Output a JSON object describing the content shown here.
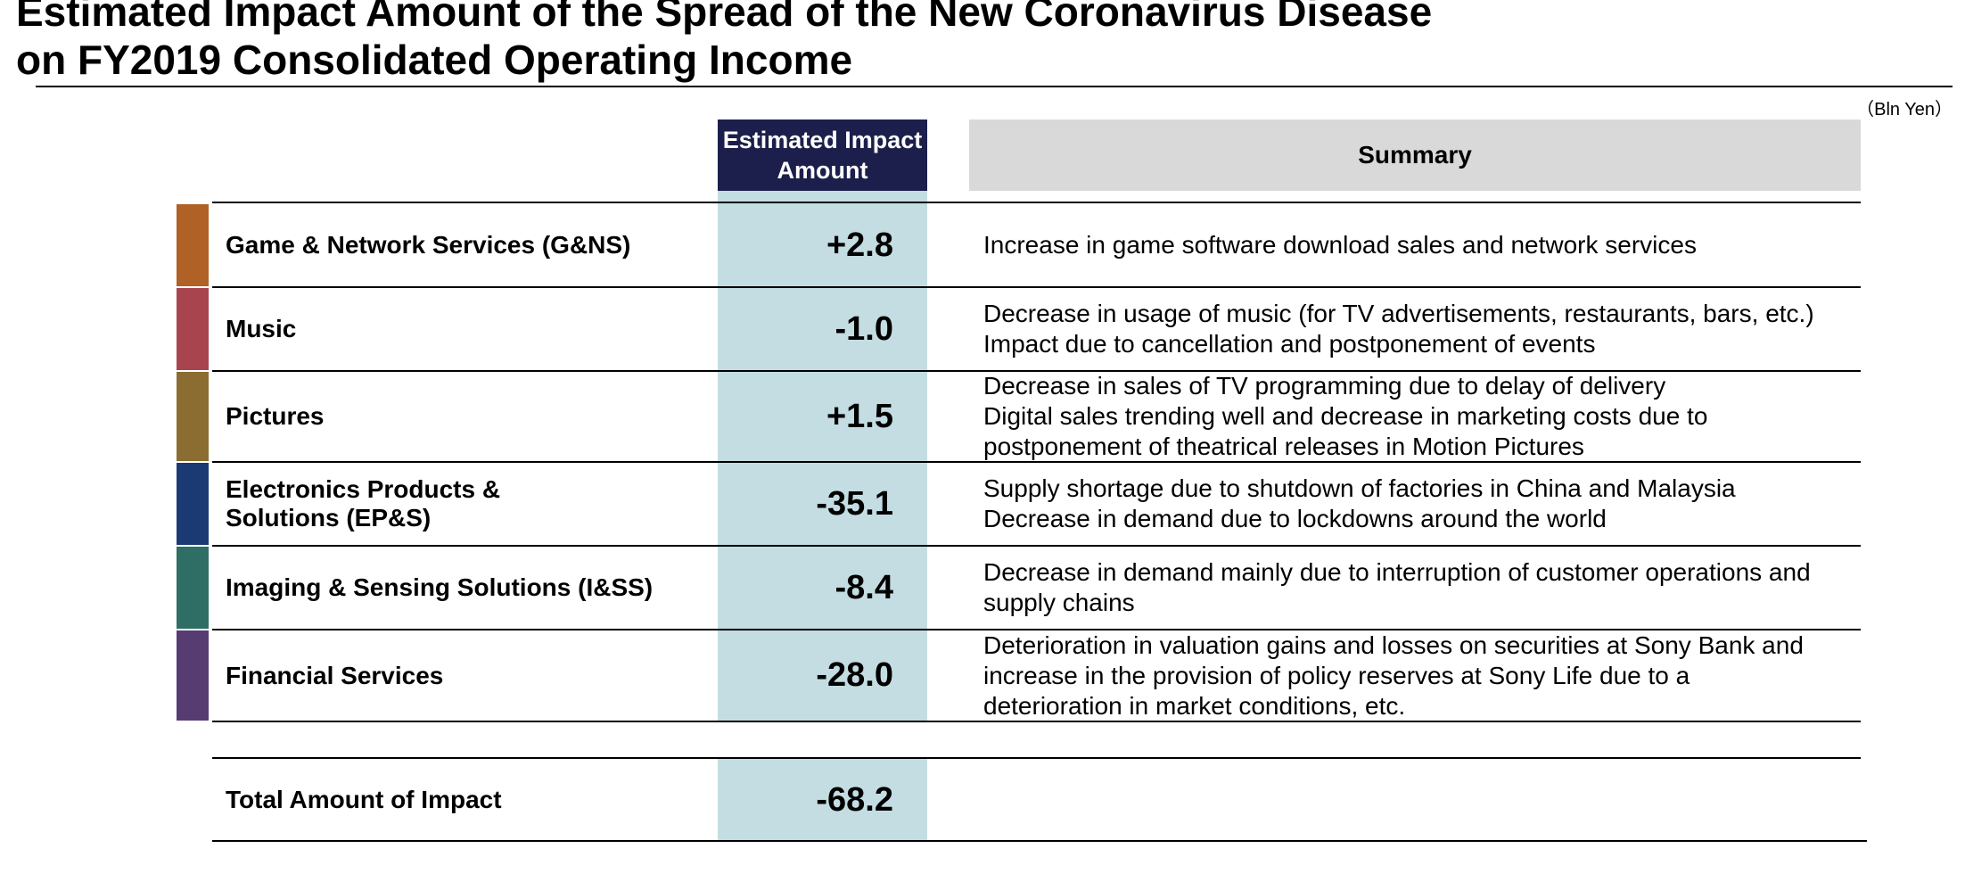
{
  "title": {
    "line1": "Estimated Impact Amount of the Spread of the New Coronavirus Disease",
    "line2": "on FY2019 Consolidated Operating Income"
  },
  "unit": "（Bln Yen）",
  "headers": {
    "impact_line1": "Estimated Impact",
    "impact_line2": "Amount",
    "summary": "Summary"
  },
  "colors": {
    "impact_header_bg": "#1c1f4b",
    "impact_column_bg": "#c3dde2",
    "summary_header_bg": "#d9d9d9"
  },
  "rows": [
    {
      "segment_lines": [
        "Game & Network Services (G&NS)"
      ],
      "impact": "+2.8",
      "impact_value": 2.8,
      "color": "#b06126",
      "summary_lines": [
        "Increase in game software download sales and network services"
      ]
    },
    {
      "segment_lines": [
        "Music"
      ],
      "impact": "-1.0",
      "impact_value": -1.0,
      "color": "#a8444e",
      "summary_lines": [
        "Decrease in usage of music (for TV advertisements, restaurants, bars, etc.)",
        "Impact due to cancellation and postponement of events"
      ]
    },
    {
      "segment_lines": [
        "Pictures"
      ],
      "impact": "+1.5",
      "impact_value": 1.5,
      "color": "#8b6d31",
      "summary_lines": [
        "Decrease in sales of TV programming due to delay of delivery",
        "Digital sales trending well and decrease in marketing costs due to",
        "postponement of theatrical releases in Motion Pictures"
      ]
    },
    {
      "segment_lines": [
        "Electronics Products &",
        "Solutions (EP&S)"
      ],
      "impact": "-35.1",
      "impact_value": -35.1,
      "color": "#1b3a73",
      "summary_lines": [
        "Supply shortage due to shutdown of factories in China and Malaysia",
        "Decrease in demand due to lockdowns around the world"
      ]
    },
    {
      "segment_lines": [
        "Imaging & Sensing Solutions (I&SS)"
      ],
      "impact": "-8.4",
      "impact_value": -8.4,
      "color": "#2f6e64",
      "summary_lines": [
        "Decrease in demand mainly due to interruption of customer operations and",
        "supply chains"
      ]
    },
    {
      "segment_lines": [
        "Financial Services"
      ],
      "impact": "-28.0",
      "impact_value": -28.0,
      "color": "#573c72",
      "summary_lines": [
        "Deterioration in valuation gains and losses on securities at Sony Bank and",
        "increase in the provision of policy reserves at Sony Life due to a",
        "deterioration in market conditions, etc."
      ]
    }
  ],
  "total": {
    "label": "Total Amount of Impact",
    "impact": "-68.2",
    "impact_value": -68.2
  }
}
